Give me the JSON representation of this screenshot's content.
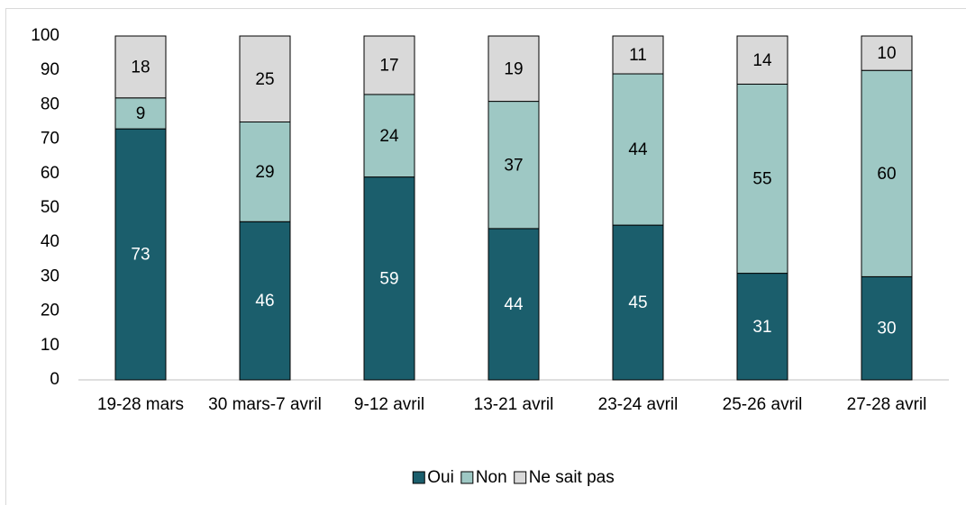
{
  "chart_data": {
    "type": "stacked_bar",
    "categories": [
      "19-28 mars",
      "30 mars-7 avril",
      "9-12 avril",
      "13-21 avril",
      "23-24 avril",
      "25-26 avril",
      "27-28 avril"
    ],
    "series": [
      {
        "name": "Oui",
        "color": "#1b5e6c",
        "values": [
          73,
          46,
          59,
          44,
          45,
          31,
          30
        ]
      },
      {
        "name": "Non",
        "color": "#9ec8c4",
        "values": [
          9,
          29,
          24,
          37,
          44,
          55,
          60
        ]
      },
      {
        "name": "Ne sait pas",
        "color": "#d9d9d9",
        "values": [
          18,
          25,
          17,
          19,
          11,
          14,
          10
        ]
      }
    ],
    "ylim": [
      0,
      100
    ],
    "yticks": [
      0,
      10,
      20,
      30,
      40,
      50,
      60,
      70,
      80,
      90,
      100
    ],
    "grid": false,
    "legend": "bottom"
  }
}
